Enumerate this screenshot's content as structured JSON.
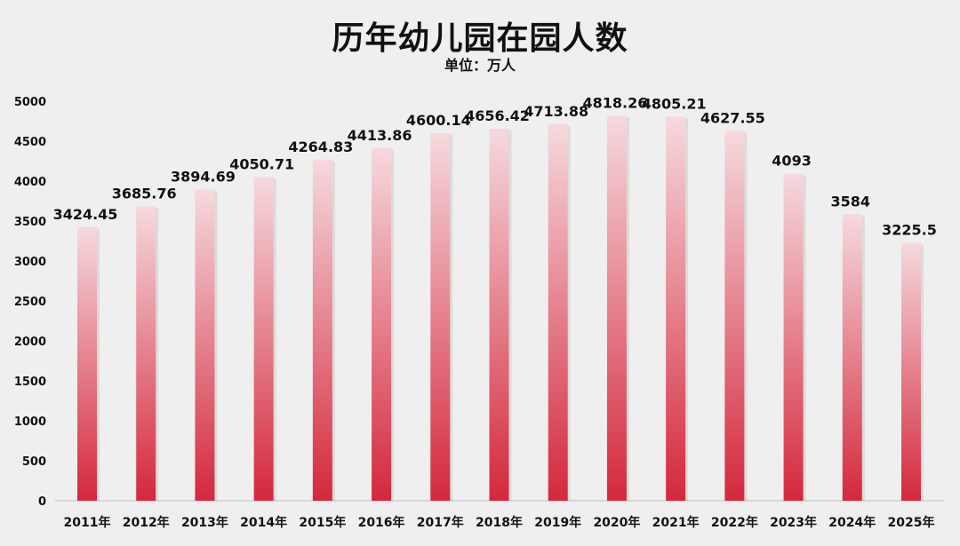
{
  "colors": {
    "background": "#efefef",
    "bar_top": "#f6d9de",
    "bar_bottom": "#d4283c",
    "text": "#111111",
    "axis": "#bdbdbd"
  },
  "chart_data": {
    "type": "bar",
    "title": "历年幼儿园在园人数",
    "subtitle": "单位：万人",
    "categories": [
      "2011年",
      "2012年",
      "2013年",
      "2014年",
      "2015年",
      "2016年",
      "2017年",
      "2018年",
      "2019年",
      "2020年",
      "2021年",
      "2022年",
      "2023年",
      "2024年",
      "2025年"
    ],
    "values": [
      3424.45,
      3685.76,
      3894.69,
      4050.71,
      4264.83,
      4413.86,
      4600.14,
      4656.42,
      4713.88,
      4818.26,
      4805.21,
      4627.55,
      4093,
      3584,
      3225.5
    ],
    "value_labels": [
      "3424.45",
      "3685.76",
      "3894.69",
      "4050.71",
      "4264.83",
      "4413.86",
      "4600.14",
      "4656.42",
      "4713.88",
      "4818.26",
      "4805.21",
      "4627.55",
      "4093",
      "3584",
      "3225.5"
    ],
    "y_ticks": [
      0,
      500,
      1000,
      1500,
      2000,
      2500,
      3000,
      3500,
      4000,
      4500,
      5000
    ],
    "ylim": [
      0,
      5000
    ],
    "grid": false,
    "legend": "none"
  }
}
